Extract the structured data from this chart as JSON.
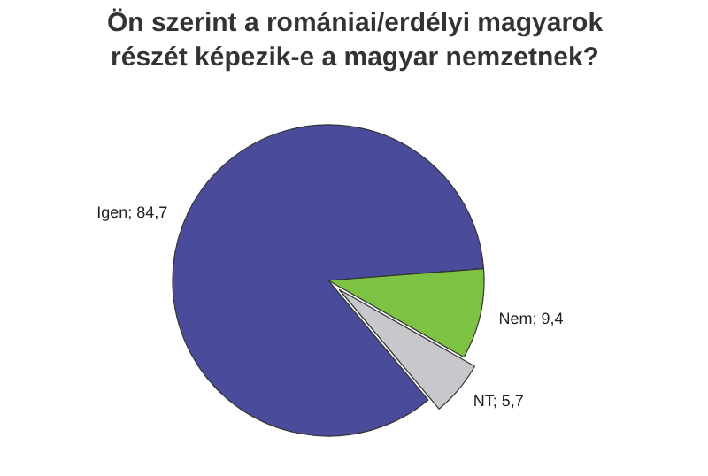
{
  "chart_data": {
    "type": "pie",
    "title": "Ön szerint a romániai/erdélyi magyarok\nrészét képezik-e a magyar nemzetnek?",
    "categories": [
      "Igen",
      "Nem",
      "NT"
    ],
    "values": [
      84.7,
      9.4,
      5.7
    ],
    "value_labels": [
      "84,7",
      "9,4",
      "5,7"
    ],
    "colors": [
      "#4b4b9b",
      "#7dc242",
      "#c8c8cc"
    ]
  }
}
